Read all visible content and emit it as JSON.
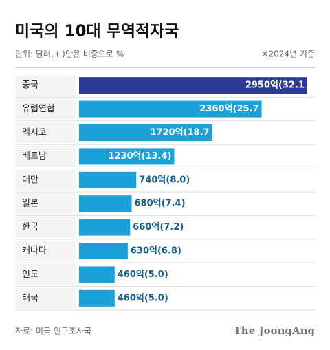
{
  "chart_data": {
    "type": "bar",
    "orientation": "horizontal",
    "title": "미국의 10대 무역적자국",
    "subtitle": "단위: 달러, ( )안은 비중으로 %",
    "note": "※2024년 기준",
    "source": "자료: 미국 인구조사국",
    "brand": "The JoongAng",
    "categories": [
      "중국",
      "유럽연합",
      "멕시코",
      "베트남",
      "대만",
      "일본",
      "한국",
      "캐나다",
      "인도",
      "태국"
    ],
    "values": [
      2950,
      2360,
      1720,
      1230,
      740,
      680,
      660,
      630,
      460,
      460
    ],
    "value_labels": [
      "2950억(32.1",
      "2360억(25.7",
      "1720억(18.7",
      "1230억(13.4)",
      "740억(8.0)",
      "680억(7.4)",
      "660억(7.2)",
      "630억(6.8)",
      "460억(5.0)",
      "460억(5.0)"
    ],
    "colors": [
      "#2c3b98",
      "#1aa2d8",
      "#1aa2d8",
      "#1aa2d8",
      "#1aa2d8",
      "#1aa2d8",
      "#1aa2d8",
      "#1aa2d8",
      "#1aa2d8",
      "#1aa2d8"
    ]
  }
}
